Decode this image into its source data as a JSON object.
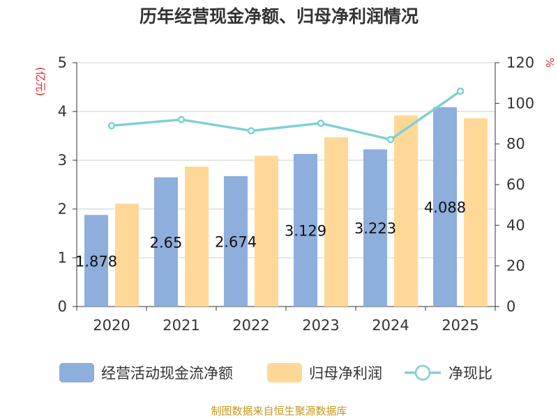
{
  "colors": {
    "bar1": "#8eaedc",
    "bar2": "#ffd897",
    "line": "#7fd0d4",
    "axis": "#333333",
    "grid": "#cccccc",
    "unit": "#e8232a",
    "source": "#c8961e"
  },
  "chart_data": {
    "type": "bar",
    "title": "历年经营现金净额、归母净利润情况",
    "categories": [
      "2020",
      "2021",
      "2022",
      "2023",
      "2024",
      "2025"
    ],
    "left_unit": "(亿元)",
    "right_unit": "%",
    "ylim_left": [
      0,
      5
    ],
    "yticks_left": [
      "0",
      "1",
      "2",
      "3",
      "4",
      "5"
    ],
    "ylim_right": [
      0,
      120
    ],
    "yticks_right": [
      "0",
      "20",
      "40",
      "60",
      "80",
      "100",
      "120"
    ],
    "grid": true,
    "legend_position": "bottom",
    "series": [
      {
        "name": "经营活动现金流净额",
        "type": "bar",
        "axis": "left",
        "values": [
          1.878,
          2.65,
          2.674,
          3.129,
          3.223,
          4.088
        ],
        "labels": [
          "1.878",
          "2.65",
          "2.674",
          "3.129",
          "3.223",
          "4.088"
        ]
      },
      {
        "name": "归母净利润",
        "type": "bar",
        "axis": "left",
        "values": [
          2.11,
          2.87,
          3.09,
          3.47,
          3.92,
          3.86
        ]
      },
      {
        "name": "净现比",
        "type": "line",
        "axis": "right",
        "values": [
          89,
          92,
          86.5,
          90.2,
          82.2,
          106
        ]
      }
    ],
    "source": "制图数据来自恒生聚源数据库"
  }
}
